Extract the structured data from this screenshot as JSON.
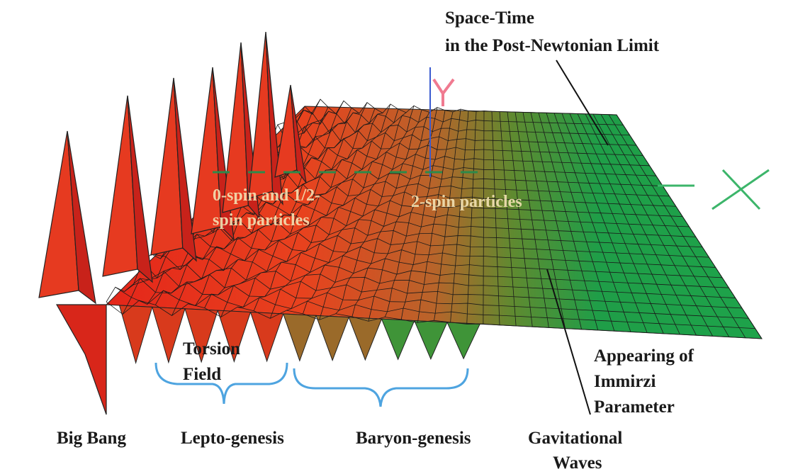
{
  "labels": {
    "space_time": [
      "Space-Time",
      "in the Post-Newtonian Limit"
    ],
    "spin_half": [
      "0-spin and 1/2-",
      "spin particles"
    ],
    "spin_two": "2-spin particles",
    "torsion": [
      "Torsion",
      "Field"
    ],
    "big_bang": "Big Bang",
    "lepto": "Lepto-genesis",
    "baryon": "Baryon-genesis",
    "waves": [
      "Gavitational",
      "Waves"
    ],
    "immirzi": [
      "Appearing of",
      "Immirzi",
      "Parameter"
    ]
  }
}
